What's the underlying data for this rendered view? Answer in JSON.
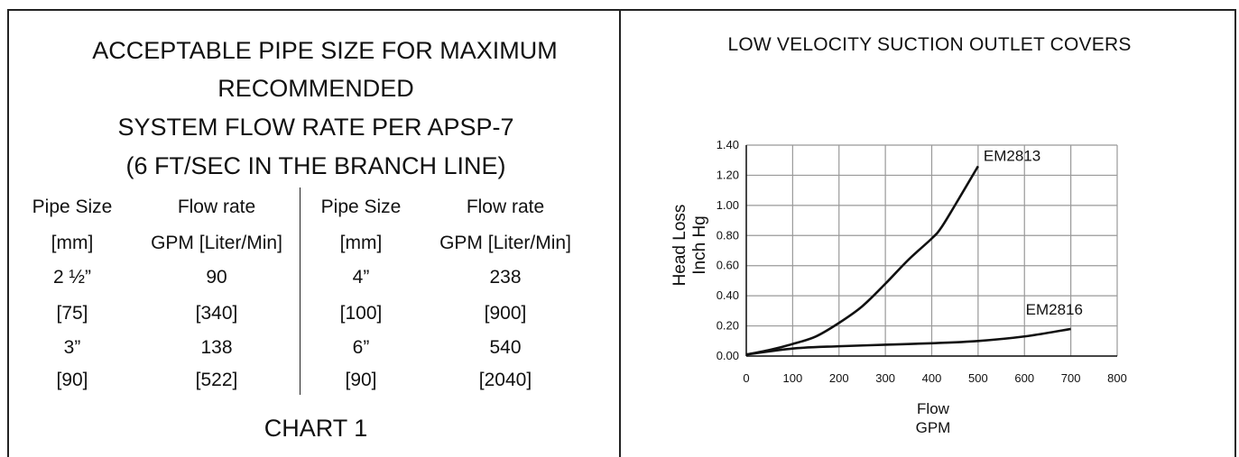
{
  "table_section": {
    "title_lines": [
      "ACCEPTABLE PIPE SIZE FOR MAXIMUM",
      "RECOMMENDED",
      "SYSTEM FLOW RATE PER APSP-7",
      "(6 FT/SEC IN THE BRANCH LINE)"
    ],
    "headers": [
      {
        "line1": "Pipe Size",
        "line2": "[mm]"
      },
      {
        "line1": "Flow rate",
        "line2": "GPM [Liter/Min]"
      },
      {
        "line1": "Pipe Size",
        "line2": "[mm]"
      },
      {
        "line1": "Flow rate",
        "line2": "GPM [Liter/Min]"
      }
    ],
    "rows": [
      [
        "2 ½”",
        "90",
        "4”",
        "238"
      ],
      [
        "[75]",
        "[340]",
        "[100]",
        "[900]"
      ],
      [
        "3”",
        "138",
        "6”",
        "540"
      ],
      [
        "[90]",
        "[522]",
        "[90]",
        "[2040]"
      ]
    ],
    "caption": "CHART 1"
  },
  "chart_data": {
    "type": "line",
    "title": "LOW VELOCITY SUCTION OUTLET COVERS",
    "xlabel_lines": [
      "Flow",
      "GPM"
    ],
    "ylabel_lines": [
      "Head Loss",
      "Inch Hg"
    ],
    "xlim": [
      0,
      800
    ],
    "ylim": [
      0,
      1.4
    ],
    "x_ticks": [
      "0",
      "100",
      "200",
      "300",
      "400",
      "500",
      "600",
      "700",
      "800"
    ],
    "y_ticks": [
      "0.00",
      "0.20",
      "0.40",
      "0.60",
      "0.80",
      "1.00",
      "1.20",
      "1.40"
    ],
    "grid": true,
    "series": [
      {
        "name": "EM2813",
        "x": [
          0,
          50,
          100,
          150,
          200,
          250,
          300,
          350,
          400,
          420,
          450,
          500
        ],
        "y": [
          0.01,
          0.04,
          0.08,
          0.13,
          0.22,
          0.33,
          0.48,
          0.64,
          0.78,
          0.85,
          1.0,
          1.26
        ]
      },
      {
        "name": "EM2816",
        "x": [
          0,
          100,
          200,
          300,
          400,
          500,
          600,
          700
        ],
        "y": [
          0.01,
          0.05,
          0.065,
          0.075,
          0.085,
          0.1,
          0.13,
          0.18
        ]
      }
    ],
    "colors": {
      "line": "#111111",
      "grid": "#999999",
      "axis": "#111111"
    }
  }
}
